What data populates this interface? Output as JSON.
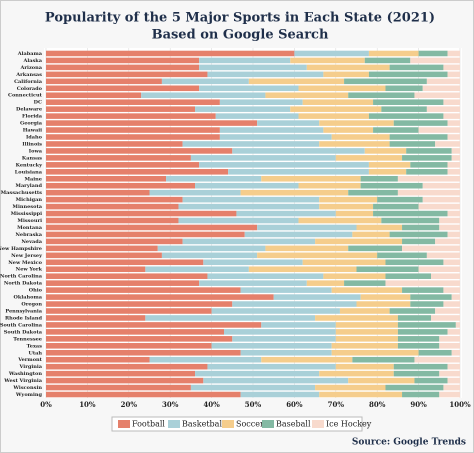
{
  "chart_data": {
    "type": "stacked-barh",
    "title": "Popularity of the 5 Major Sports in Each State (2021)",
    "subtitle": "Based on Google Search",
    "source": "Source: Google Trends",
    "categories": [
      "Alabama",
      "Alaska",
      "Arizona",
      "Arkansas",
      "California",
      "Colorado",
      "Connecticut",
      "DC",
      "Delaware",
      "Florida",
      "Georgia",
      "Hawaii",
      "Idaho",
      "Illinois",
      "Iowa",
      "Kansas",
      "Kentucky",
      "Louisiana",
      "Maine",
      "Maryland",
      "Massachusetts",
      "Michigan",
      "Minnesota",
      "Mississippi",
      "Missouri",
      "Montana",
      "Nebraska",
      "Nevada",
      "New Hampshire",
      "New Jersey",
      "New Mexico",
      "New York",
      "North Carolina",
      "North Dakota",
      "Ohio",
      "Oklahoma",
      "Oregon",
      "Pennsylvania",
      "Rhode Island",
      "South Carolina",
      "South Dakota",
      "Tennessee",
      "Texas",
      "Utah",
      "Vermont",
      "Virginia",
      "Washington",
      "West Virginia",
      "Wisconsin",
      "Wyoming"
    ],
    "series": [
      {
        "name": "Football",
        "color": "#e5806b",
        "values": [
          60,
          37,
          37,
          39,
          28,
          37,
          23,
          42,
          36,
          41,
          51,
          42,
          42,
          33,
          45,
          35,
          37,
          44,
          29,
          36,
          25,
          33,
          32,
          46,
          32,
          51,
          48,
          33,
          27,
          28,
          38,
          24,
          39,
          37,
          47,
          55,
          45,
          40,
          24,
          52,
          43,
          45,
          40,
          47,
          25,
          39,
          36,
          38,
          35,
          47
        ]
      },
      {
        "name": "Basketball",
        "color": "#a9d0d8",
        "values": [
          18,
          22,
          26,
          28,
          21,
          24,
          30,
          20,
          23,
          20,
          15,
          25,
          27,
          33,
          32,
          35,
          41,
          34,
          23,
          25,
          22,
          33,
          34,
          24,
          29,
          24,
          26,
          32,
          26,
          23,
          24,
          25,
          28,
          26,
          22,
          21,
          30,
          31,
          41,
          18,
          27,
          25,
          29,
          22,
          27,
          31,
          30,
          35,
          30,
          19
        ]
      },
      {
        "name": "Soccer",
        "color": "#f5cd8c",
        "values": [
          12,
          18,
          20,
          11,
          23,
          21,
          20,
          17,
          22,
          17,
          18,
          12,
          14,
          17,
          10,
          16,
          10,
          9,
          24,
          15,
          26,
          14,
          13,
          9,
          20,
          11,
          9,
          21,
          20,
          29,
          20,
          26,
          15,
          9,
          17,
          12,
          13,
          12,
          20,
          15,
          15,
          15,
          16,
          21,
          22,
          14,
          18,
          16,
          17,
          20
        ]
      },
      {
        "name": "Baseball",
        "color": "#83b9a3",
        "values": [
          7,
          11,
          13,
          19,
          20,
          9,
          16,
          17,
          11,
          18,
          13,
          11,
          14,
          11,
          11,
          12,
          9,
          10,
          9,
          15,
          12,
          11,
          11,
          18,
          14,
          9,
          14,
          8,
          13,
          12,
          14,
          15,
          11,
          10,
          10,
          10,
          8,
          11,
          8,
          14,
          12,
          10,
          10,
          8,
          15,
          13,
          11,
          8,
          14,
          9
        ]
      },
      {
        "name": "Ice Hockey",
        "color": "#f8dacd",
        "values": [
          3,
          12,
          4,
          3,
          8,
          9,
          11,
          4,
          8,
          4,
          3,
          10,
          3,
          6,
          2,
          2,
          3,
          3,
          15,
          9,
          15,
          9,
          10,
          3,
          5,
          5,
          3,
          6,
          14,
          8,
          4,
          10,
          7,
          18,
          4,
          2,
          4,
          6,
          7,
          1,
          3,
          5,
          5,
          2,
          11,
          3,
          5,
          3,
          4,
          5
        ]
      }
    ],
    "xlim": [
      0,
      100
    ],
    "xticks": [
      {
        "value": 0,
        "label": "0%"
      },
      {
        "value": 10,
        "label": "10%"
      },
      {
        "value": 20,
        "label": "20%"
      },
      {
        "value": 30,
        "label": "30%"
      },
      {
        "value": 40,
        "label": "40%"
      },
      {
        "value": 50,
        "label": "50%"
      },
      {
        "value": 60,
        "label": "60%"
      },
      {
        "value": 70,
        "label": "70%"
      },
      {
        "value": 80,
        "label": "80%"
      },
      {
        "value": 90,
        "label": "90%"
      },
      {
        "value": 100,
        "label": "100%"
      }
    ],
    "grid": true
  }
}
